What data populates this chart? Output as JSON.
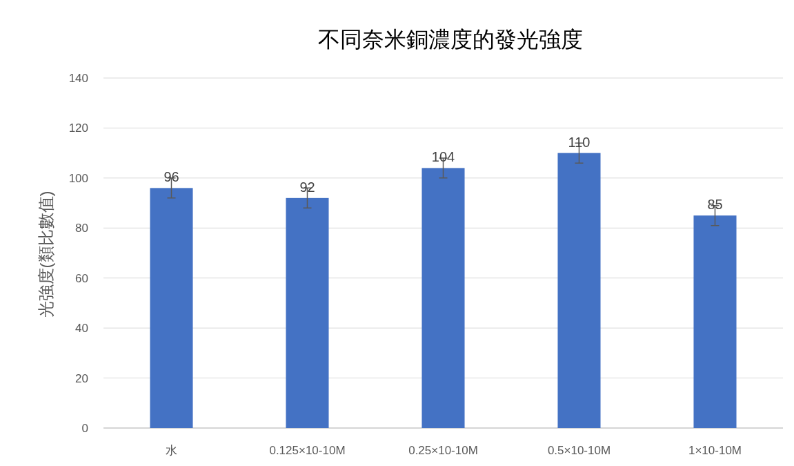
{
  "chart_data": {
    "type": "bar",
    "title": "不同奈米銅濃度的發光強度",
    "ylabel": "光強度(類比數值)",
    "categories": [
      "水",
      "0.125×10-10M",
      "0.25×10-10M",
      "0.5×10-10M",
      "1×10-10M"
    ],
    "values": [
      96,
      92,
      104,
      110,
      85
    ],
    "errors": [
      4,
      4,
      4,
      4,
      4
    ],
    "color": "#4472c4",
    "ylim": [
      0,
      140
    ],
    "yticks": [
      0,
      20,
      40,
      60,
      80,
      100,
      120,
      140
    ],
    "grid": "y",
    "data_labels": true
  }
}
